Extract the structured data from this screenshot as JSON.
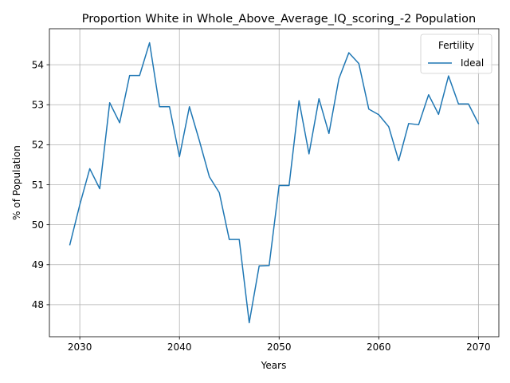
{
  "chart_data": {
    "type": "line",
    "title": "Proportion White in Whole_Above_Average_IQ_scoring_-2 Population",
    "xlabel": "Years",
    "ylabel": "% of Population",
    "xlim": [
      2026.95,
      2072.05
    ],
    "ylim": [
      47.2,
      54.9
    ],
    "xticks": [
      2030,
      2040,
      2050,
      2060,
      2070
    ],
    "yticks": [
      48,
      49,
      50,
      51,
      52,
      53,
      54
    ],
    "grid": true,
    "legend": {
      "title": "Fertility",
      "placement": "top-right"
    },
    "series": [
      {
        "name": "Ideal",
        "color": "#1f77b4",
        "x": [
          2029,
          2030,
          2031,
          2032,
          2033,
          2034,
          2035,
          2036,
          2037,
          2038,
          2039,
          2040,
          2041,
          2042,
          2043,
          2044,
          2045,
          2046,
          2047,
          2048,
          2049,
          2050,
          2051,
          2052,
          2053,
          2054,
          2055,
          2056,
          2057,
          2058,
          2059,
          2060,
          2061,
          2062,
          2063,
          2064,
          2065,
          2066,
          2067,
          2068,
          2069,
          2070
        ],
        "y": [
          49.5,
          50.5,
          51.4,
          50.9,
          53.05,
          52.55,
          53.73,
          53.73,
          54.55,
          52.95,
          52.95,
          51.7,
          52.95,
          52.1,
          51.2,
          50.8,
          49.63,
          49.63,
          47.55,
          48.97,
          48.98,
          50.98,
          50.98,
          53.1,
          51.77,
          53.15,
          52.28,
          53.65,
          54.3,
          54.03,
          52.89,
          52.75,
          52.45,
          51.6,
          52.53,
          52.5,
          53.25,
          52.76,
          53.72,
          53.02,
          53.02,
          52.53
        ]
      }
    ]
  }
}
